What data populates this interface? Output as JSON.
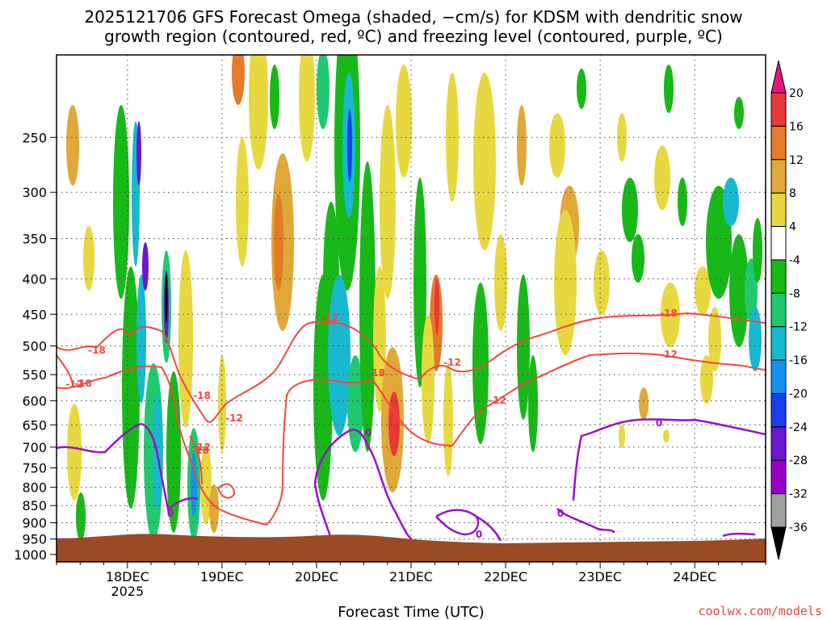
{
  "title": {
    "line1": "2025121706 GFS Forecast Omega (shaded, −cm/s) for KDSM with dendritic snow",
    "line2": "growth region (contoured, red, ºC) and freezing level (contoured, purple, ºC)"
  },
  "credit": "coolwx.com/models",
  "chart_data": {
    "type": "heatmap",
    "title": "2025121706 GFS Forecast Omega (shaded, −cm/s) for KDSM with dendritic snow growth region (contoured, red, ºC) and freezing level (contoured, purple, ºC)",
    "xlabel": "Forecast Time (UTC)",
    "ylabel": "",
    "x_ticks": [
      {
        "label": "18DEC",
        "sublabel": "2025",
        "day": 18
      },
      {
        "label": "19DEC",
        "sublabel": "",
        "day": 19
      },
      {
        "label": "20DEC",
        "sublabel": "",
        "day": 20
      },
      {
        "label": "21DEC",
        "sublabel": "",
        "day": 21
      },
      {
        "label": "22DEC",
        "sublabel": "",
        "day": 22
      },
      {
        "label": "23DEC",
        "sublabel": "",
        "day": 23
      },
      {
        "label": "24DEC",
        "sublabel": "",
        "day": 24
      }
    ],
    "x_range_days": [
      17.25,
      24.75
    ],
    "y_ticks": [
      250,
      300,
      350,
      400,
      450,
      500,
      550,
      600,
      650,
      700,
      750,
      800,
      850,
      900,
      950,
      1000
    ],
    "y_range_hpa": [
      190,
      1025
    ],
    "y_scale": "log",
    "grid": true,
    "colorbar": {
      "labels": [
        "20",
        "16",
        "12",
        "8",
        "4",
        "-4",
        "-8",
        "-12",
        "-16",
        "-20",
        "-24",
        "-28",
        "-32",
        "-36"
      ],
      "colors": [
        "#e0187a",
        "#e8383a",
        "#e47a2a",
        "#e0a838",
        "#e8d840",
        "#ffffff",
        "#18b818",
        "#20c870",
        "#18b8d0",
        "#1890f0",
        "#1840e8",
        "#6818d0",
        "#9800c8",
        "#a0a0a0",
        "#000000"
      ]
    },
    "contours": {
      "dgz_levels": [
        "-12",
        "-18"
      ],
      "dgz_color": "#f0483c",
      "freezing_level": "0",
      "freezing_color": "#9a10c8",
      "label_positions_text": [
        "-18",
        "-12",
        "-18",
        "-12",
        "-18",
        "-12",
        "-18",
        "-12",
        "-12",
        "-18",
        "-12",
        "-18",
        "-12"
      ],
      "freezing_label_text": [
        "0",
        "0",
        "0",
        "0",
        "0"
      ]
    },
    "terrain_color": "#9a4a24"
  }
}
